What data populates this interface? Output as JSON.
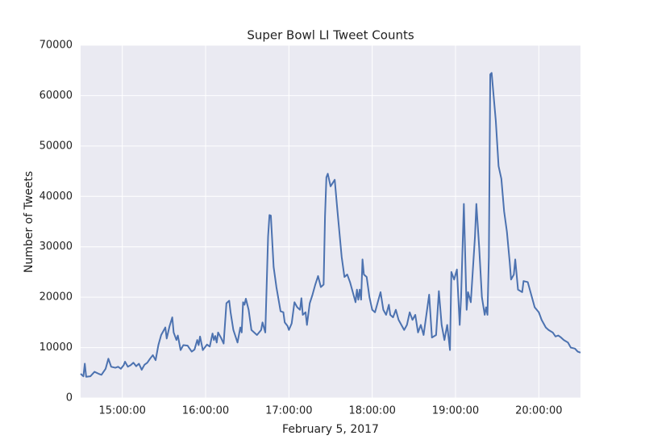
{
  "chart_data": {
    "type": "line",
    "title": "Super Bowl LI Tweet Counts",
    "xlabel": "February 5, 2017",
    "ylabel": "Number of Tweets",
    "xlim": [
      "14:30:00",
      "20:30:00"
    ],
    "xticks": [
      "15:00:00",
      "16:00:00",
      "17:00:00",
      "18:00:00",
      "19:00:00",
      "20:00:00"
    ],
    "ylim": [
      0,
      70000
    ],
    "yticks": [
      0,
      10000,
      20000,
      30000,
      40000,
      50000,
      60000,
      70000
    ],
    "grid": true,
    "background": "#eaeaf2",
    "x": [
      "14:30:00",
      "14:32:00",
      "14:33:00",
      "14:34:00",
      "14:37:00",
      "14:40:00",
      "14:43:00",
      "14:45:00",
      "14:48:00",
      "14:50:00",
      "14:52:00",
      "14:55:00",
      "14:57:00",
      "14:59:00",
      "15:01:00",
      "15:02:00",
      "15:04:00",
      "15:06:00",
      "15:08:00",
      "15:10:00",
      "15:12:00",
      "15:14:00",
      "15:16:00",
      "15:18:00",
      "15:20:00",
      "15:22:00",
      "15:24:00",
      "15:26:00",
      "15:28:00",
      "15:31:00",
      "15:32:00",
      "15:34:00",
      "15:36:00",
      "15:37:00",
      "15:39:00",
      "15:40:00",
      "15:42:00",
      "15:44:00",
      "15:47:00",
      "15:50:00",
      "15:52:00",
      "15:54:00",
      "15:55:00",
      "15:56:00",
      "15:58:00",
      "16:01:00",
      "16:03:00",
      "16:05:00",
      "16:06:00",
      "16:07:00",
      "16:08:00",
      "16:09:00",
      "16:11:00",
      "16:13:00",
      "16:15:00",
      "16:17:00",
      "16:18:00",
      "16:20:00",
      "16:23:00",
      "16:25:00",
      "16:26:00",
      "16:27:00",
      "16:28:00",
      "16:29:00",
      "16:31:00",
      "16:33:00",
      "16:35:00",
      "16:37:00",
      "16:40:00",
      "16:41:00",
      "16:43:00",
      "16:45:00",
      "16:46:00",
      "16:47:00",
      "16:49:00",
      "16:51:00",
      "16:54:00",
      "16:56:00",
      "16:57:00",
      "16:59:00",
      "17:00:00",
      "17:02:00",
      "17:04:00",
      "17:06:00",
      "17:08:00",
      "17:09:00",
      "17:10:00",
      "17:12:00",
      "17:13:00",
      "17:15:00",
      "17:17:00",
      "17:19:00",
      "17:21:00",
      "17:23:00",
      "17:25:00",
      "17:26:00",
      "17:27:00",
      "17:28:00",
      "17:30:00",
      "17:33:00",
      "17:35:00",
      "17:38:00",
      "17:40:00",
      "17:42:00",
      "17:44:00",
      "17:46:00",
      "17:48:00",
      "17:49:00",
      "17:50:00",
      "17:51:00",
      "17:52:00",
      "17:53:00",
      "17:54:00",
      "17:56:00",
      "17:58:00",
      "18:00:00",
      "18:02:00",
      "18:04:00",
      "18:06:00",
      "18:08:00",
      "18:10:00",
      "18:12:00",
      "18:13:00",
      "18:15:00",
      "18:17:00",
      "18:19:00",
      "18:21:00",
      "18:23:00",
      "18:25:00",
      "18:27:00",
      "18:29:00",
      "18:31:00",
      "18:33:00",
      "18:35:00",
      "18:37:00",
      "18:41:00",
      "18:43:00",
      "18:46:00",
      "18:48:00",
      "18:50:00",
      "18:52:00",
      "18:54:00",
      "18:56:00",
      "18:57:00",
      "18:59:00",
      "19:01:00",
      "19:03:00",
      "19:04:00",
      "19:06:00",
      "19:08:00",
      "19:09:00",
      "19:11:00",
      "19:14:00",
      "19:15:00",
      "19:17:00",
      "19:19:00",
      "19:21:00",
      "19:22:00",
      "19:23:00",
      "19:24:00",
      "19:25:00",
      "19:26:00",
      "19:29:00",
      "19:31:00",
      "19:33:00",
      "19:35:00",
      "19:37:00",
      "19:39:00",
      "19:40:00",
      "19:42:00",
      "19:43:00",
      "19:45:00",
      "19:48:00",
      "19:49:00",
      "19:52:00",
      "19:55:00",
      "19:57:00",
      "20:00:00",
      "20:02:00",
      "20:05:00",
      "20:07:00",
      "20:10:00",
      "20:12:00",
      "20:14:00",
      "20:16:00",
      "20:18:00",
      "20:21:00",
      "20:23:00",
      "20:26:00",
      "20:28:00",
      "20:30:00"
    ],
    "series": [
      {
        "name": "Tweets",
        "color": "#4c72b0",
        "values": [
          4800,
          4300,
          6800,
          4200,
          4300,
          5200,
          4800,
          4600,
          5800,
          7800,
          6200,
          6000,
          6200,
          5800,
          6500,
          7200,
          6200,
          6500,
          7000,
          6300,
          6800,
          5600,
          6600,
          7000,
          7800,
          8500,
          7500,
          10500,
          12500,
          14000,
          11800,
          14200,
          16000,
          13000,
          11500,
          12400,
          9500,
          10500,
          10400,
          9200,
          9600,
          11500,
          10500,
          12200,
          9500,
          10600,
          10200,
          12800,
          11500,
          12300,
          11000,
          13000,
          12000,
          10800,
          18800,
          19300,
          17000,
          13500,
          11000,
          14000,
          13000,
          19000,
          18500,
          19700,
          17500,
          13500,
          13000,
          12500,
          13500,
          15000,
          13000,
          32000,
          36300,
          36200,
          26000,
          22000,
          17200,
          17000,
          15000,
          14300,
          13500,
          14800,
          19000,
          18000,
          17500,
          19800,
          16500,
          17000,
          14500,
          18800,
          20500,
          22500,
          24200,
          22000,
          22500,
          36000,
          43800,
          44500,
          42000,
          43300,
          37000,
          28000,
          24000,
          24500,
          23000,
          21000,
          19000,
          21500,
          19500,
          21500,
          19500,
          27500,
          24500,
          24000,
          20000,
          17500,
          17000,
          19000,
          21000,
          17500,
          16500,
          18500,
          16500,
          16000,
          17500,
          15500,
          14500,
          13500,
          14500,
          17000,
          15500,
          16500,
          13000,
          14500,
          12500,
          20500,
          12000,
          12500,
          21200,
          14500,
          11500,
          14500,
          9500,
          25000,
          23500,
          25500,
          14500,
          20000,
          38500,
          17500,
          21000,
          19000,
          32000,
          38500,
          30000,
          20000,
          16500,
          18000,
          16500,
          28000,
          64200,
          64500,
          55000,
          46000,
          43500,
          37000,
          33000,
          27000,
          23500,
          24500,
          27500,
          21500,
          21000,
          23200,
          23000,
          20000,
          18000,
          17000,
          15500,
          14000,
          13500,
          13000,
          12200,
          12400,
          12000,
          11500,
          11000,
          10000,
          9800,
          9200,
          9000
        ]
      }
    ]
  }
}
